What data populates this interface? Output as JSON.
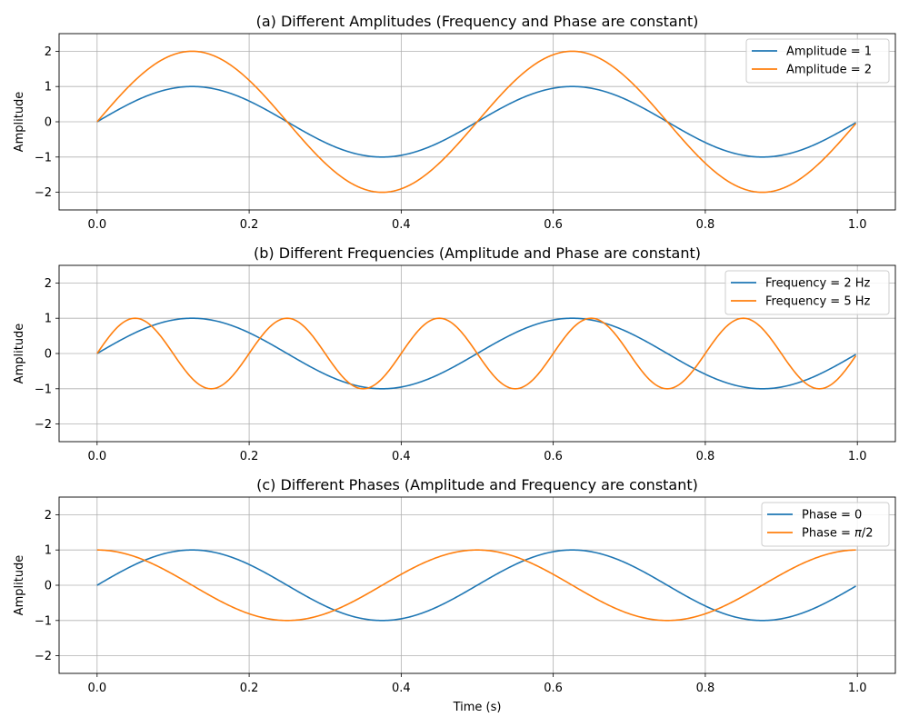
{
  "chart_data": [
    {
      "type": "line",
      "title": "(a) Different Amplitudes (Frequency and Phase are constant)",
      "xlabel": "",
      "ylabel": "Amplitude",
      "xlim": [
        -0.05,
        1.05
      ],
      "ylim": [
        -2.5,
        2.5
      ],
      "x_ticks": [
        0.0,
        0.2,
        0.4,
        0.6,
        0.8,
        1.0
      ],
      "x_tick_labels": [
        "0.0",
        "0.2",
        "0.4",
        "0.6",
        "0.8",
        "1.0"
      ],
      "y_ticks": [
        2,
        1,
        0,
        -1,
        -2
      ],
      "y_tick_labels": [
        "2",
        "1",
        "0",
        "−1",
        "−2"
      ],
      "grid": true,
      "legend_position": "top-right",
      "series": [
        {
          "name": "Amplitude = 1",
          "color": "#1f77b4",
          "amplitude": 1,
          "frequency_hz": 2,
          "phase": 0,
          "function": "sin"
        },
        {
          "name": "Amplitude = 2",
          "color": "#ff7f0e",
          "amplitude": 2,
          "frequency_hz": 2,
          "phase": 0,
          "function": "sin"
        }
      ]
    },
    {
      "type": "line",
      "title": "(b) Different Frequencies (Amplitude and Phase are constant)",
      "xlabel": "",
      "ylabel": "Amplitude",
      "xlim": [
        -0.05,
        1.05
      ],
      "ylim": [
        -2.5,
        2.5
      ],
      "x_ticks": [
        0.0,
        0.2,
        0.4,
        0.6,
        0.8,
        1.0
      ],
      "x_tick_labels": [
        "0.0",
        "0.2",
        "0.4",
        "0.6",
        "0.8",
        "1.0"
      ],
      "y_ticks": [
        2,
        1,
        0,
        -1,
        -2
      ],
      "y_tick_labels": [
        "2",
        "1",
        "0",
        "−1",
        "−2"
      ],
      "grid": true,
      "legend_position": "top-right",
      "series": [
        {
          "name": "Frequency = 2 Hz",
          "color": "#1f77b4",
          "amplitude": 1,
          "frequency_hz": 2,
          "phase": 0,
          "function": "sin"
        },
        {
          "name": "Frequency = 5 Hz",
          "color": "#ff7f0e",
          "amplitude": 1,
          "frequency_hz": 5,
          "phase": 0,
          "function": "sin"
        }
      ]
    },
    {
      "type": "line",
      "title": "(c) Different Phases (Amplitude and Frequency are constant)",
      "xlabel": "Time (s)",
      "ylabel": "Amplitude",
      "xlim": [
        -0.05,
        1.05
      ],
      "ylim": [
        -2.5,
        2.5
      ],
      "x_ticks": [
        0.0,
        0.2,
        0.4,
        0.6,
        0.8,
        1.0
      ],
      "x_tick_labels": [
        "0.0",
        "0.2",
        "0.4",
        "0.6",
        "0.8",
        "1.0"
      ],
      "y_ticks": [
        2,
        1,
        0,
        -1,
        -2
      ],
      "y_tick_labels": [
        "2",
        "1",
        "0",
        "−1",
        "−2"
      ],
      "grid": true,
      "legend_position": "top-right",
      "series": [
        {
          "name": "Phase = 0",
          "color": "#1f77b4",
          "amplitude": 1,
          "frequency_hz": 2,
          "phase": 0,
          "function": "sin"
        },
        {
          "name": "Phase = π/2",
          "color": "#ff7f0e",
          "amplitude": 1,
          "frequency_hz": 2,
          "phase": 1.5707963267948966,
          "function": "sin"
        }
      ]
    }
  ]
}
